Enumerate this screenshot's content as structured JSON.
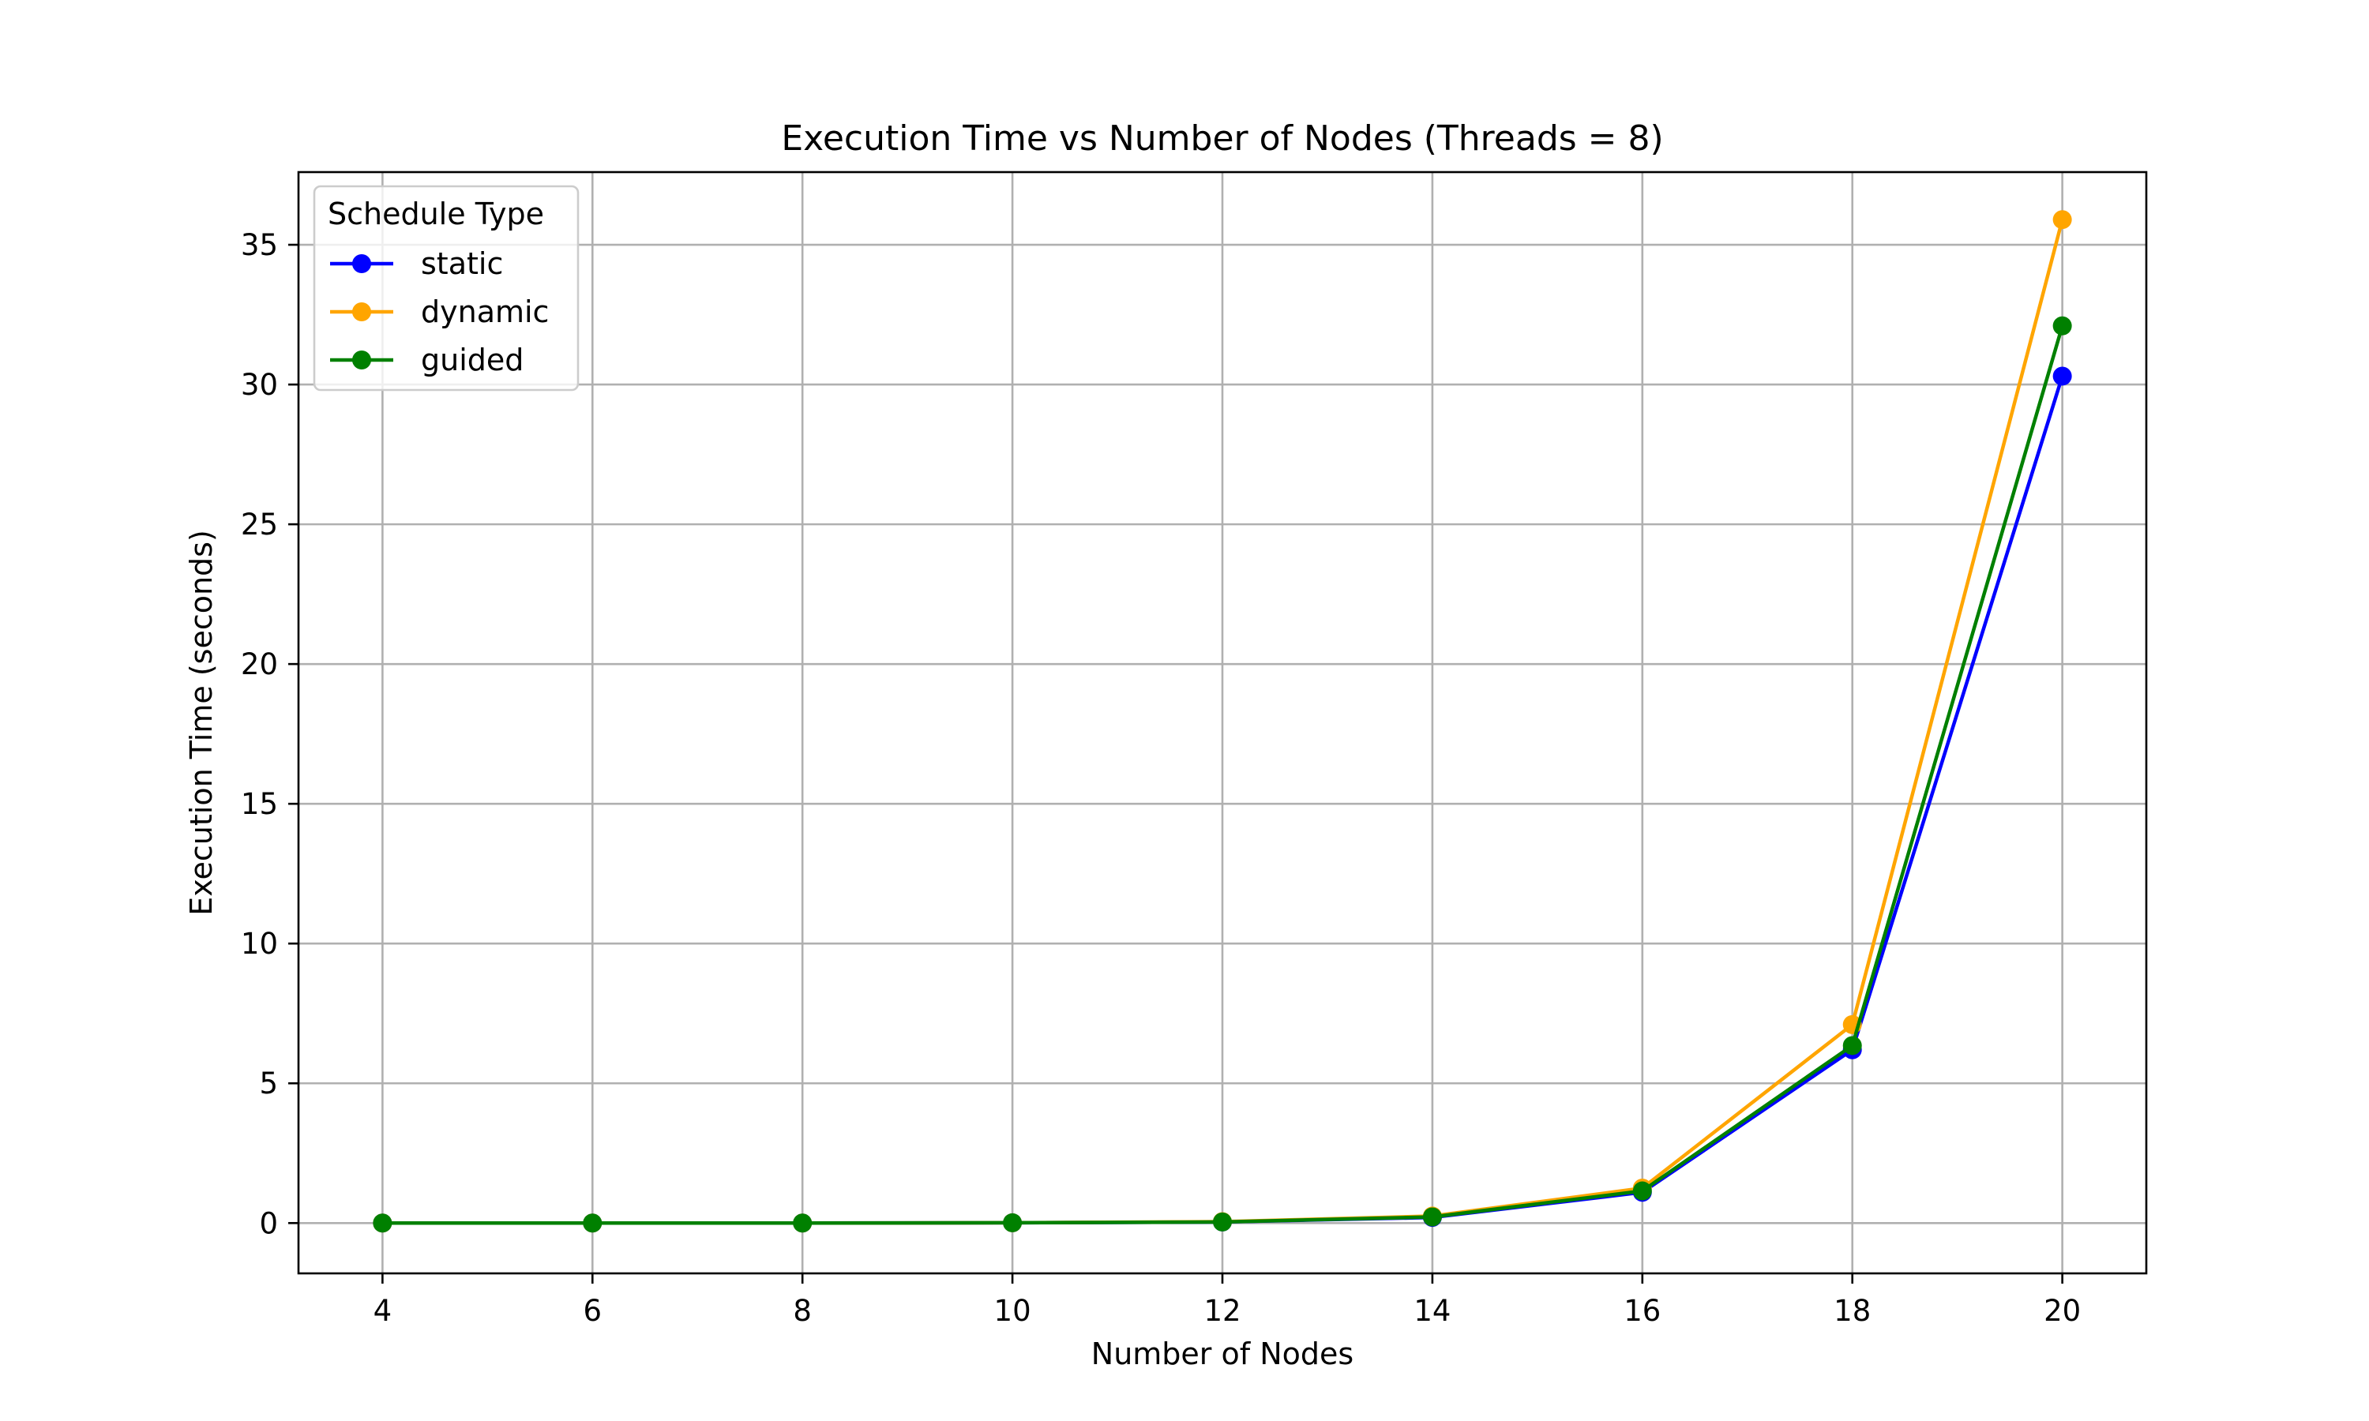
{
  "chart_data": {
    "type": "line",
    "title": "Execution Time vs Number of Nodes (Threads = 8)",
    "xlabel": "Number of Nodes",
    "ylabel": "Execution Time (seconds)",
    "x": [
      4,
      6,
      8,
      10,
      12,
      14,
      16,
      18,
      20
    ],
    "xticks": [
      4,
      6,
      8,
      10,
      12,
      14,
      16,
      18,
      20
    ],
    "yticks": [
      0,
      5,
      10,
      15,
      20,
      25,
      30,
      35
    ],
    "xlim": [
      3.2,
      20.8
    ],
    "ylim": [
      -1.8,
      37.6
    ],
    "grid": true,
    "legend": {
      "title": "Schedule Type",
      "placement": "top-left"
    },
    "series": [
      {
        "name": "static",
        "color": "#0000ff",
        "marker": "circle",
        "values": [
          0.0,
          0.0,
          0.0,
          0.01,
          0.04,
          0.2,
          1.1,
          6.2,
          30.3
        ]
      },
      {
        "name": "dynamic",
        "color": "#ffa500",
        "marker": "circle",
        "values": [
          0.0,
          0.0,
          0.0,
          0.01,
          0.05,
          0.25,
          1.25,
          7.1,
          35.9
        ]
      },
      {
        "name": "guided",
        "color": "#008000",
        "marker": "circle",
        "values": [
          0.0,
          0.0,
          0.0,
          0.01,
          0.04,
          0.22,
          1.15,
          6.35,
          32.1
        ]
      }
    ]
  }
}
